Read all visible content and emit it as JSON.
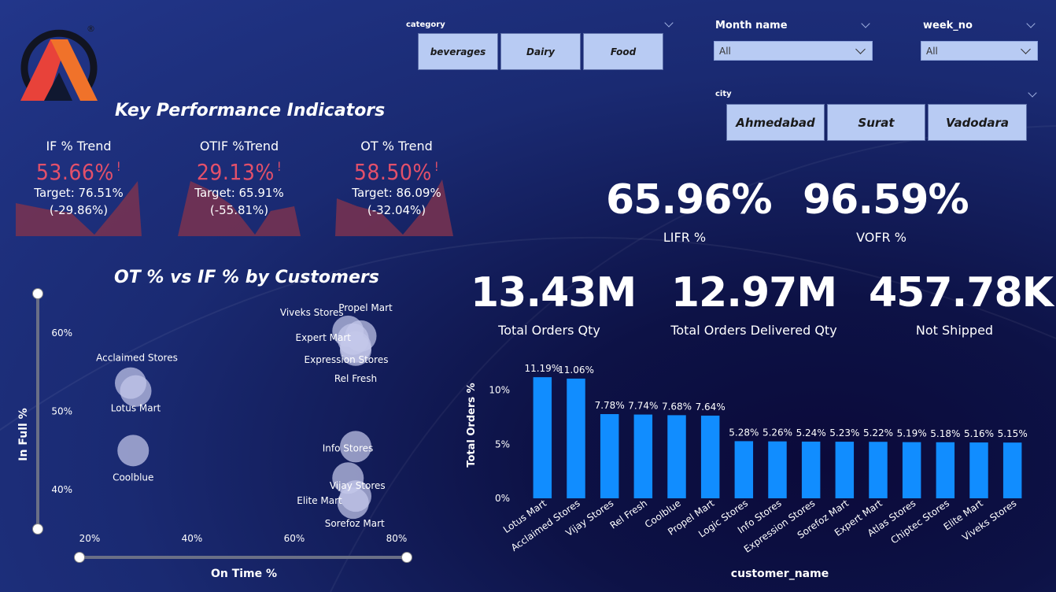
{
  "logo": {
    "trademark": "®",
    "colors": [
      "#f0722a",
      "#e8423a"
    ]
  },
  "filters": {
    "category": {
      "label": "category",
      "options": [
        "beverages",
        "Dairy",
        "Food"
      ]
    },
    "month": {
      "label": "Month name",
      "value": "All"
    },
    "week": {
      "label": "week_no",
      "value": "All"
    },
    "city": {
      "label": "city",
      "options": [
        "Ahmedabad",
        "Surat",
        "Vadodara"
      ]
    }
  },
  "kpi": {
    "heading": "Key Performance Indicators",
    "cards": [
      {
        "title": "IF % Trend",
        "value": "53.66%",
        "flag": "!",
        "target": "Target: 76.51%",
        "delta": "(-29.86%)"
      },
      {
        "title": "OTIF %Trend",
        "value": "29.13%",
        "flag": "!",
        "target": "Target: 65.91%",
        "delta": "(-55.81%)"
      },
      {
        "title": "OT % Trend",
        "value": "58.50%",
        "flag": "!",
        "target": "Target: 86.09%",
        "delta": "(-32.04%)"
      }
    ]
  },
  "metrics": {
    "lifr": {
      "value": "65.96%",
      "label": "LIFR %"
    },
    "vofr": {
      "value": "96.59%",
      "label": "VOFR %"
    },
    "total_orders": {
      "value": "13.43M",
      "label": "Total Orders Qty"
    },
    "delivered": {
      "value": "12.97M",
      "label": "Total Orders Delivered Qty"
    },
    "not_shipped": {
      "value": "457.78K",
      "label": "Not Shipped"
    }
  },
  "scatter": {
    "title": "OT % vs IF % by Customers",
    "xlabel": "On Time %",
    "ylabel": "In Full %",
    "xticks": [
      "20%",
      "40%",
      "60%",
      "80%"
    ],
    "yticks": [
      "40%",
      "50%",
      "60%"
    ]
  },
  "bar_title": "",
  "chart_data": [
    {
      "type": "scatter",
      "title": "OT % vs IF % by Customers",
      "xlabel": "On Time %",
      "ylabel": "In Full %",
      "xlim": [
        18,
        82
      ],
      "ylim": [
        35,
        65
      ],
      "points": [
        {
          "name": "Acclaimed Stores",
          "x": 28,
          "y": 53.6
        },
        {
          "name": "Lotus Mart",
          "x": 29,
          "y": 52.6
        },
        {
          "name": "Coolblue",
          "x": 28.5,
          "y": 45.0
        },
        {
          "name": "Propel Mart",
          "x": 73,
          "y": 59.6
        },
        {
          "name": "Viveks Stores",
          "x": 70.5,
          "y": 60.2
        },
        {
          "name": "Expert Mart",
          "x": 71.5,
          "y": 59.2
        },
        {
          "name": "Expression Stores",
          "x": 72,
          "y": 58.2
        },
        {
          "name": "Rel Fresh",
          "x": 72,
          "y": 57.8
        },
        {
          "name": "Info Stores",
          "x": 72,
          "y": 45.5
        },
        {
          "name": "Vijay Stores",
          "x": 70.5,
          "y": 41.5
        },
        {
          "name": "Elite Mart",
          "x": 72,
          "y": 39.2
        },
        {
          "name": "Sorefoz Mart",
          "x": 71.5,
          "y": 38.3
        }
      ]
    },
    {
      "type": "bar",
      "xlabel": "customer_name",
      "ylabel": "Total Orders %",
      "ylim": [
        0,
        12
      ],
      "yticks": [
        "0%",
        "5%",
        "10%"
      ],
      "categories": [
        "Lotus Mart",
        "Acclaimed Stores",
        "Vijay Stores",
        "Rel Fresh",
        "Coolblue",
        "Propel Mart",
        "Logic Stores",
        "Info Stores",
        "Expression Stores",
        "Sorefoz Mart",
        "Expert Mart",
        "Atlas Stores",
        "Chiptec Stores",
        "Elite Mart",
        "Viveks Stores"
      ],
      "values": [
        11.19,
        11.06,
        7.78,
        7.74,
        7.68,
        7.64,
        5.28,
        5.26,
        5.24,
        5.23,
        5.22,
        5.19,
        5.18,
        5.16,
        5.15
      ],
      "labels": [
        "11.19%",
        "11.06%",
        "7.78%",
        "7.74%",
        "7.68%",
        "7.64%",
        "5.28%",
        "5.26%",
        "5.24%",
        "5.23%",
        "5.22%",
        "5.19%",
        "5.18%",
        "5.16%",
        "5.15%"
      ],
      "color": "#118dff"
    }
  ]
}
